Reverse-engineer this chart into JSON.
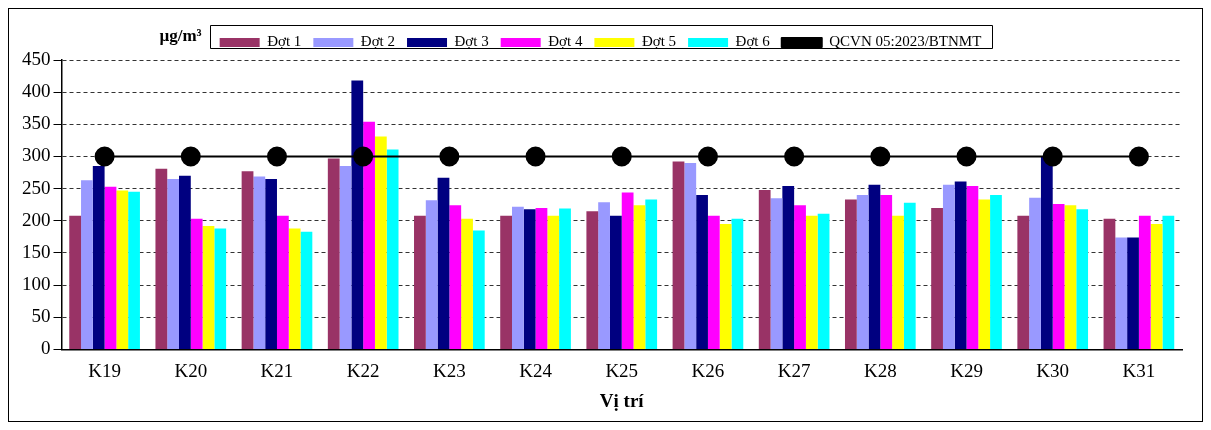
{
  "chart_data": {
    "type": "bar",
    "ylabel": "µg/m³",
    "xlabel": "Vị trí",
    "categories": [
      "K19",
      "K20",
      "K21",
      "K22",
      "K23",
      "K24",
      "K25",
      "K26",
      "K27",
      "K28",
      "K29",
      "K30",
      "K31"
    ],
    "series": [
      {
        "name": "Đợt 1",
        "color": "#993366",
        "values": [
          208,
          281,
          277,
          297,
          208,
          208,
          215,
          292,
          248,
          233,
          220,
          208,
          203
        ]
      },
      {
        "name": "Đợt 2",
        "color": "#9999ff",
        "values": [
          263,
          265,
          269,
          285,
          232,
          222,
          229,
          290,
          235,
          240,
          256,
          236,
          174
        ]
      },
      {
        "name": "Đợt 3",
        "color": "#000080",
        "values": [
          285,
          270,
          265,
          418,
          267,
          218,
          208,
          240,
          254,
          256,
          261,
          300,
          174
        ]
      },
      {
        "name": "Đợt 4",
        "color": "#ff00ff",
        "values": [
          253,
          203,
          208,
          354,
          224,
          220,
          244,
          208,
          224,
          240,
          254,
          226,
          208
        ]
      },
      {
        "name": "Đợt 5",
        "color": "#ffff00",
        "values": [
          247,
          192,
          188,
          331,
          203,
          208,
          224,
          195,
          208,
          208,
          233,
          224,
          195
        ]
      },
      {
        "name": "Đợt 6",
        "color": "#00ffff",
        "values": [
          245,
          188,
          183,
          311,
          185,
          219,
          233,
          203,
          211,
          228,
          240,
          218,
          208
        ]
      },
      {
        "name": "QCVN 05:2023/BTNMT",
        "color": "#000000",
        "type": "line",
        "marker": "circle",
        "values": [
          300,
          300,
          300,
          300,
          300,
          300,
          300,
          300,
          300,
          300,
          300,
          300,
          300
        ]
      }
    ],
    "ylim": [
      0,
      450
    ],
    "yticks": [
      0,
      50,
      100,
      150,
      200,
      250,
      300,
      350,
      400,
      450
    ],
    "grid": "y",
    "legend": "top"
  }
}
